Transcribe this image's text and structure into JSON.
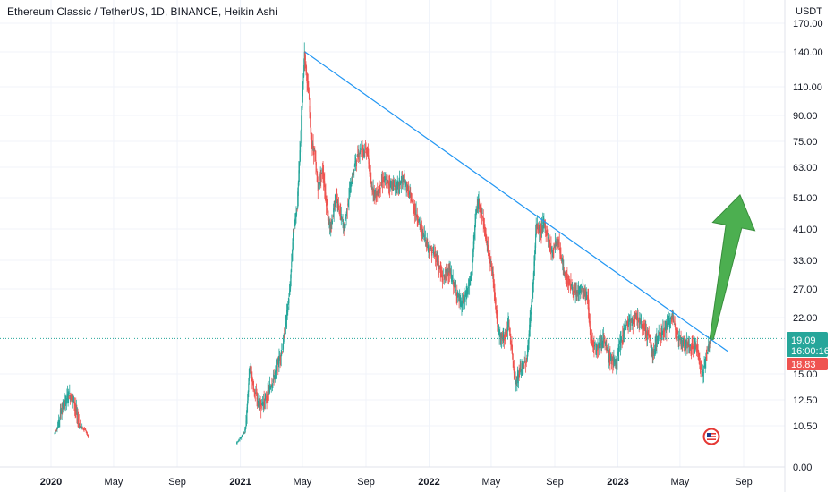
{
  "header": {
    "title": "Ethereum Classic / TetherUS, 1D, BINANCE, Heikin Ashi"
  },
  "price_axis": {
    "currency": "USDT",
    "ticks": [
      "170.00",
      "140.00",
      "110.00",
      "90.00",
      "75.00",
      "63.00",
      "51.00",
      "41.00",
      "33.00",
      "27.00",
      "22.00",
      "15.00",
      "12.50",
      "10.50",
      "0.00"
    ]
  },
  "time_axis": {
    "ticks": [
      "2020",
      "May",
      "Sep",
      "2021",
      "May",
      "Sep",
      "2022",
      "May",
      "Sep",
      "2023",
      "May",
      "Sep"
    ]
  },
  "price_tags": {
    "last_price": "19.09",
    "countdown": "16:00:16",
    "prev_close": "18.83"
  },
  "colors": {
    "up": "#26a69a",
    "down": "#ef5350",
    "trendline": "#2196f3",
    "arrow": "#4caf50",
    "last_price_tag": "#26a69a",
    "prev_close_tag": "#ef5350",
    "grid": "#f0f3fa"
  },
  "icons": {
    "flag": "us-flag-icon"
  },
  "chart_data": {
    "type": "candlestick",
    "series_style": "Heikin Ashi",
    "xlim": [
      "2019-11-01",
      "2023-10-01"
    ],
    "ylim_log": [
      10.0,
      200.0
    ],
    "grid": true,
    "path": [
      [
        "2020-01-08",
        8.5
      ],
      [
        "2020-01-20",
        11.5
      ],
      [
        "2020-02-05",
        13.0
      ],
      [
        "2020-02-15",
        12.5
      ],
      [
        "2020-02-25",
        10.5
      ],
      [
        "2020-03-08",
        9.5
      ],
      [
        "2020-03-15",
        7.5
      ],
      [
        "2020-12-25",
        6.0
      ],
      [
        "2021-01-10",
        9.0
      ],
      [
        "2021-01-20",
        16.0
      ],
      [
        "2021-01-28",
        13.5
      ],
      [
        "2021-02-08",
        12.0
      ],
      [
        "2021-02-20",
        12.5
      ],
      [
        "2021-03-10",
        15.0
      ],
      [
        "2021-03-25",
        18.0
      ],
      [
        "2021-04-01",
        22.0
      ],
      [
        "2021-04-08",
        27.0
      ],
      [
        "2021-04-14",
        40.0
      ],
      [
        "2021-04-22",
        48.0
      ],
      [
        "2021-04-28",
        75.0
      ],
      [
        "2021-05-06",
        140.0
      ],
      [
        "2021-05-10",
        120.0
      ],
      [
        "2021-05-14",
        105.0
      ],
      [
        "2021-05-19",
        75.0
      ],
      [
        "2021-05-25",
        70.0
      ],
      [
        "2021-06-01",
        55.0
      ],
      [
        "2021-06-10",
        62.0
      ],
      [
        "2021-06-18",
        48.0
      ],
      [
        "2021-06-25",
        40.0
      ],
      [
        "2021-07-05",
        52.0
      ],
      [
        "2021-07-15",
        45.0
      ],
      [
        "2021-07-22",
        41.0
      ],
      [
        "2021-07-31",
        52.0
      ],
      [
        "2021-08-12",
        65.0
      ],
      [
        "2021-08-24",
        72.0
      ],
      [
        "2021-09-05",
        70.0
      ],
      [
        "2021-09-12",
        55.0
      ],
      [
        "2021-09-22",
        52.0
      ],
      [
        "2021-10-05",
        58.0
      ],
      [
        "2021-10-18",
        56.0
      ],
      [
        "2021-11-01",
        55.0
      ],
      [
        "2021-11-12",
        58.0
      ],
      [
        "2021-11-22",
        54.0
      ],
      [
        "2021-12-05",
        47.0
      ],
      [
        "2021-12-18",
        41.0
      ],
      [
        "2022-01-01",
        36.0
      ],
      [
        "2022-01-15",
        34.0
      ],
      [
        "2022-01-28",
        29.0
      ],
      [
        "2022-02-08",
        31.0
      ],
      [
        "2022-02-22",
        27.0
      ],
      [
        "2022-03-05",
        24.0
      ],
      [
        "2022-03-15",
        26.0
      ],
      [
        "2022-03-25",
        30.0
      ],
      [
        "2022-04-02",
        45.0
      ],
      [
        "2022-04-08",
        50.0
      ],
      [
        "2022-04-15",
        45.0
      ],
      [
        "2022-04-25",
        36.0
      ],
      [
        "2022-05-05",
        30.0
      ],
      [
        "2022-05-10",
        25.0
      ],
      [
        "2022-05-15",
        20.0
      ],
      [
        "2022-05-25",
        19.0
      ],
      [
        "2022-06-05",
        21.0
      ],
      [
        "2022-06-12",
        17.0
      ],
      [
        "2022-06-18",
        14.0
      ],
      [
        "2022-06-28",
        15.5
      ],
      [
        "2022-07-10",
        16.5
      ],
      [
        "2022-07-22",
        28.0
      ],
      [
        "2022-07-28",
        42.0
      ],
      [
        "2022-08-05",
        40.0
      ],
      [
        "2022-08-12",
        43.0
      ],
      [
        "2022-08-20",
        38.0
      ],
      [
        "2022-08-28",
        35.0
      ],
      [
        "2022-09-05",
        38.0
      ],
      [
        "2022-09-10",
        37.0
      ],
      [
        "2022-09-20",
        30.0
      ],
      [
        "2022-10-01",
        28.0
      ],
      [
        "2022-10-12",
        26.0
      ],
      [
        "2022-10-25",
        27.0
      ],
      [
        "2022-11-05",
        25.0
      ],
      [
        "2022-11-10",
        19.0
      ],
      [
        "2022-11-22",
        18.0
      ],
      [
        "2022-12-05",
        19.0
      ],
      [
        "2022-12-15",
        17.0
      ],
      [
        "2022-12-28",
        16.0
      ],
      [
        "2023-01-08",
        19.0
      ],
      [
        "2023-01-18",
        21.0
      ],
      [
        "2023-01-28",
        21.5
      ],
      [
        "2023-02-08",
        22.0
      ],
      [
        "2023-02-15",
        21.0
      ],
      [
        "2023-02-22",
        20.5
      ],
      [
        "2023-03-05",
        19.0
      ],
      [
        "2023-03-10",
        17.0
      ],
      [
        "2023-03-18",
        19.0
      ],
      [
        "2023-03-28",
        20.0
      ],
      [
        "2023-04-05",
        20.5
      ],
      [
        "2023-04-15",
        22.0
      ],
      [
        "2023-04-22",
        21.0
      ],
      [
        "2023-05-01",
        19.0
      ],
      [
        "2023-05-12",
        18.5
      ],
      [
        "2023-05-22",
        18.0
      ],
      [
        "2023-06-01",
        18.5
      ],
      [
        "2023-06-06",
        17.5
      ],
      [
        "2023-06-10",
        15.5
      ],
      [
        "2023-06-15",
        15.0
      ],
      [
        "2023-06-20",
        16.5
      ],
      [
        "2023-06-25",
        18.0
      ],
      [
        "2023-07-01",
        19.09
      ]
    ],
    "annotations": [
      {
        "type": "trendline",
        "from": [
          "2021-05-06",
          140.0
        ],
        "to": [
          "2023-08-01",
          17.5
        ]
      },
      {
        "type": "arrow",
        "from": [
          "2023-07-01",
          19.0
        ],
        "to": [
          "2023-08-25",
          52.0
        ]
      },
      {
        "type": "price_line",
        "value": 19.09
      }
    ]
  }
}
